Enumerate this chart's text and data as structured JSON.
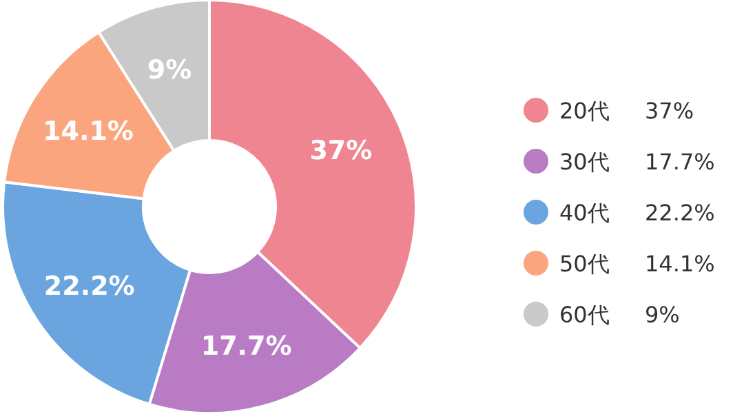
{
  "chart_data": {
    "type": "donut",
    "categories": [
      "20代",
      "30代",
      "40代",
      "50代",
      "60代"
    ],
    "values": [
      37,
      17.7,
      22.2,
      14.1,
      9
    ],
    "colors": [
      "#ef8591",
      "#b97cc4",
      "#6aa5e0",
      "#fba57f",
      "#c9c9c9"
    ],
    "value_labels": [
      "37%",
      "17.7%",
      "22.2%",
      "14.1%",
      "9%"
    ],
    "legend": "right"
  }
}
